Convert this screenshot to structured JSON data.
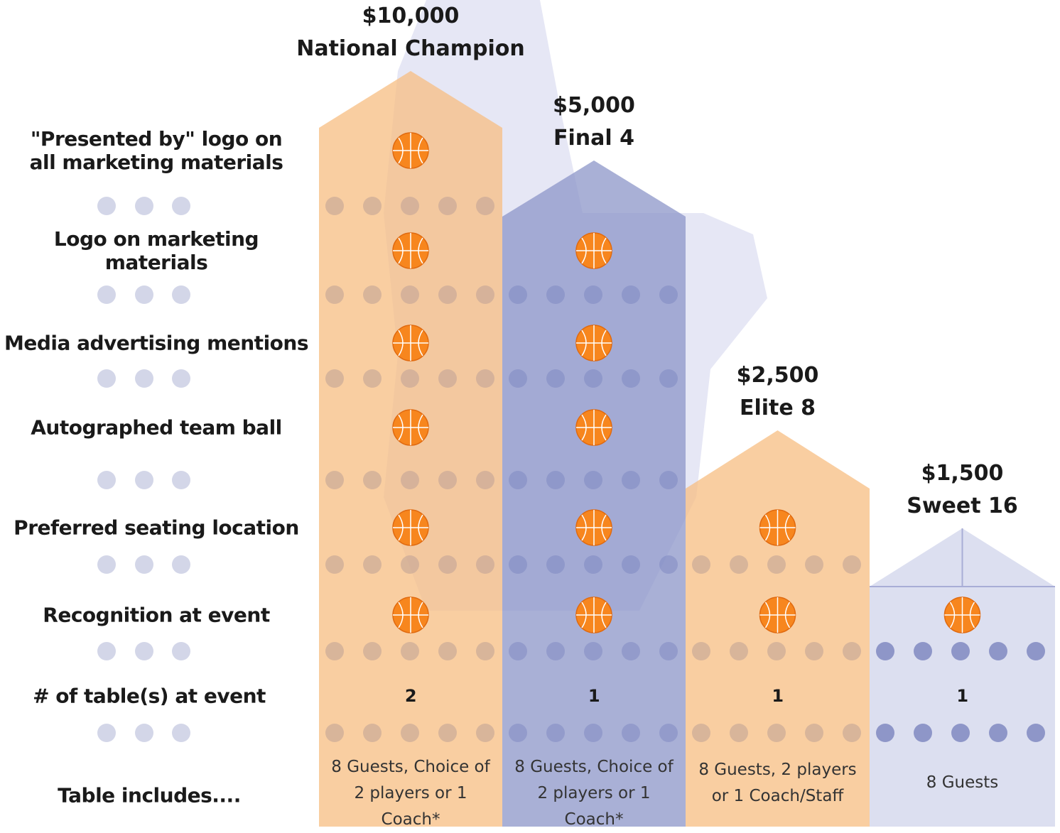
{
  "features": [
    "\"Presented by\" logo on all marketing materials",
    "Logo on marketing materials",
    "Media advertising mentions",
    "Autographed team ball",
    "Preferred seating location",
    "Recognition at event"
  ],
  "tables_label": "# of table(s) at event",
  "includes_label": "Table includes....",
  "tiers": [
    {
      "price": "$10,000",
      "name": "National Champion",
      "tables": 2,
      "includes": "8 Guests, Choice of 2 players or 1 Coach*"
    },
    {
      "price": "$5,000",
      "name": "Final 4",
      "tables": 1,
      "includes": "8 Guests, Choice of 2 players or 1 Coach*"
    },
    {
      "price": "$2,500",
      "name": "Elite 8",
      "tables": 1,
      "includes": "8 Guests, 2 players or 1 Coach/Staff"
    },
    {
      "price": "$1,500",
      "name": "Sweet 16",
      "tables": 1,
      "includes": "8 Guests"
    }
  ]
}
